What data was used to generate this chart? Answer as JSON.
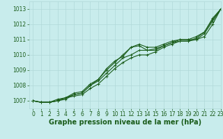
{
  "xlabel": "Graphe pression niveau de la mer (hPa)",
  "ylim": [
    1006.5,
    1013.5
  ],
  "xlim": [
    -0.5,
    23
  ],
  "yticks": [
    1007,
    1008,
    1009,
    1010,
    1011,
    1012,
    1013
  ],
  "xticks": [
    0,
    1,
    2,
    3,
    4,
    5,
    6,
    7,
    8,
    9,
    10,
    11,
    12,
    13,
    14,
    15,
    16,
    17,
    18,
    19,
    20,
    21,
    22,
    23
  ],
  "background_color": "#c8ecec",
  "grid_color": "#b0d8d8",
  "line_color": "#1a5c1a",
  "series": [
    [
      1007.0,
      1006.9,
      1006.9,
      1007.0,
      1007.2,
      1007.3,
      1007.4,
      1007.8,
      1008.1,
      1008.6,
      1009.1,
      1009.5,
      1009.8,
      1010.0,
      1010.0,
      1010.2,
      1010.5,
      1010.7,
      1010.9,
      1010.9,
      1011.0,
      1011.2,
      1012.0,
      1013.0
    ],
    [
      1007.0,
      1006.9,
      1006.9,
      1007.0,
      1007.2,
      1007.4,
      1007.5,
      1008.0,
      1008.3,
      1008.8,
      1009.3,
      1009.8,
      1010.0,
      1010.3,
      1010.3,
      1010.4,
      1010.6,
      1010.8,
      1011.0,
      1011.0,
      1011.0,
      1011.4,
      1012.2,
      1013.0
    ],
    [
      1007.0,
      1006.9,
      1006.9,
      1007.0,
      1007.1,
      1007.4,
      1007.5,
      1008.0,
      1008.4,
      1009.0,
      1009.5,
      1010.0,
      1010.5,
      1010.6,
      1010.3,
      1010.3,
      1010.6,
      1010.8,
      1010.9,
      1010.9,
      1011.1,
      1011.5,
      1012.3,
      1013.0
    ],
    [
      1007.0,
      1006.9,
      1006.9,
      1007.1,
      1007.2,
      1007.5,
      1007.6,
      1008.1,
      1008.4,
      1009.1,
      1009.6,
      1009.9,
      1010.5,
      1010.7,
      1010.5,
      1010.5,
      1010.7,
      1010.9,
      1011.0,
      1011.0,
      1011.2,
      1011.5,
      1012.4,
      1013.0
    ]
  ],
  "marker": "+",
  "markersize": 3,
  "linewidth": 0.8,
  "font_color": "#1a5c1a",
  "tick_fontsize": 5.5,
  "label_fontsize": 7
}
